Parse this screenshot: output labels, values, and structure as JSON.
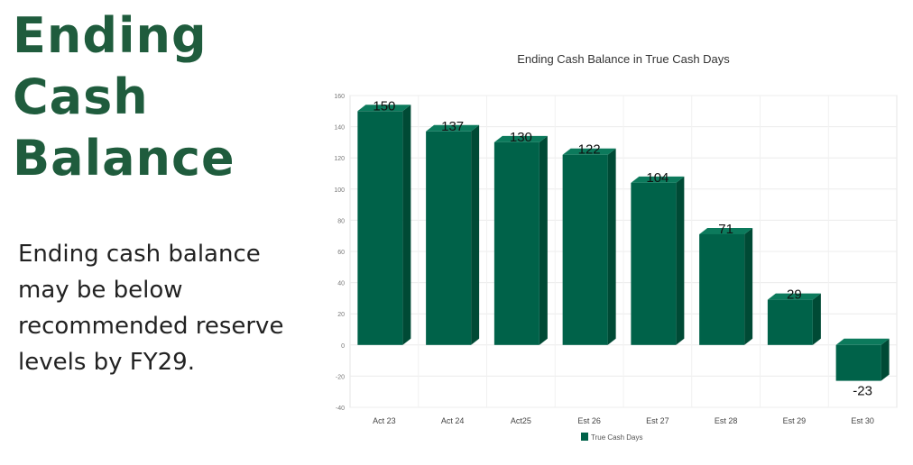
{
  "slide": {
    "heading_lines": [
      "Ending",
      "Cash",
      "Balance"
    ],
    "body": "Ending cash balance may be below recommended reserve levels by FY29.",
    "colors": {
      "heading": "#1f5c3d",
      "bar_front": "#006249",
      "bar_top": "#0c7a5c",
      "bar_side": "#004a35"
    }
  },
  "chart_data": {
    "type": "bar",
    "title": "Ending Cash Balance in True Cash Days",
    "categories": [
      "Act 23",
      "Act 24",
      "Act25",
      "Est 26",
      "Est 27",
      "Est 28",
      "Est 29",
      "Est 30"
    ],
    "series": [
      {
        "name": "True Cash Days",
        "values": [
          150,
          137,
          130,
          122,
          104,
          71,
          29,
          -23
        ]
      }
    ],
    "ylim": [
      -40,
      160
    ],
    "yticks": [
      160,
      140,
      120,
      100,
      80,
      60,
      40,
      20,
      0,
      -20,
      -40
    ],
    "grid": true,
    "legend": "bottom",
    "style": "3d-column"
  }
}
